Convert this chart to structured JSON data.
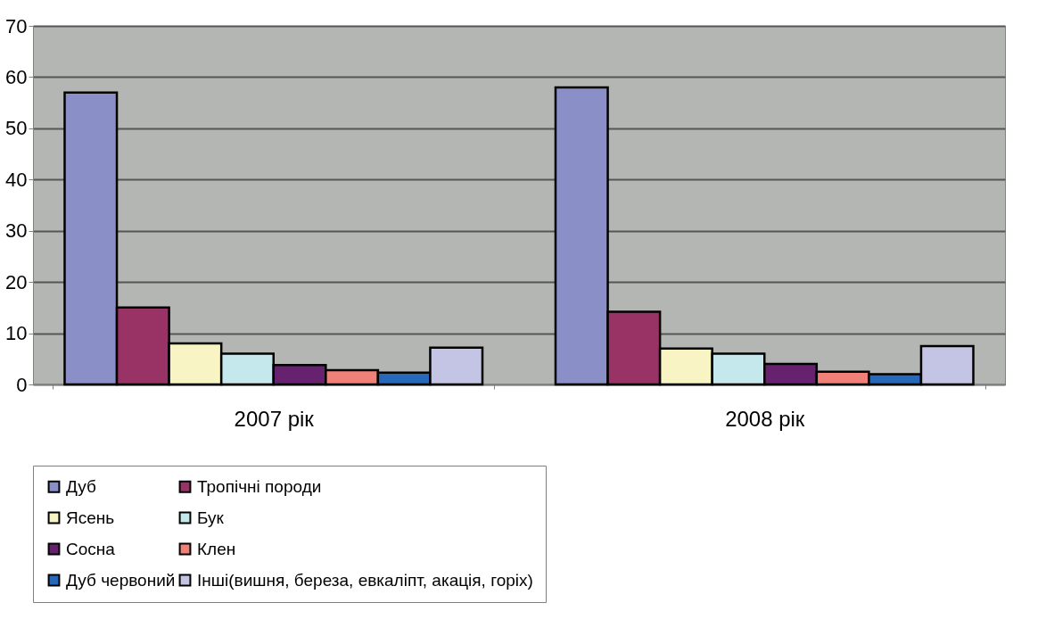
{
  "chart_data": {
    "type": "bar",
    "categories": [
      "2007 рік",
      "2008 рік"
    ],
    "series": [
      {
        "name": "Дуб",
        "color": "#8b8fc8",
        "values": [
          57,
          58
        ]
      },
      {
        "name": "Тропічні породи",
        "color": "#993366",
        "values": [
          15,
          14.2
        ]
      },
      {
        "name": "Ясень",
        "color": "#f8f4c4",
        "values": [
          8,
          7
        ]
      },
      {
        "name": "Бук",
        "color": "#c4e8ec",
        "values": [
          6,
          6
        ]
      },
      {
        "name": "Сосна",
        "color": "#66226e",
        "values": [
          3.8,
          4
        ]
      },
      {
        "name": "Клен",
        "color": "#f08078",
        "values": [
          2.8,
          2.5
        ]
      },
      {
        "name": "Дуб червоний",
        "color": "#2868b8",
        "values": [
          2.3,
          2
        ]
      },
      {
        "name": "Інші(вишня, береза, евкаліпт, акація, горіх)",
        "color": "#c4c4e4",
        "values": [
          7.2,
          7.5
        ]
      }
    ],
    "ylim": [
      0,
      70
    ],
    "yticks": [
      0,
      10,
      20,
      30,
      40,
      50,
      60,
      70
    ],
    "grid": "y",
    "legend": "bottom"
  }
}
